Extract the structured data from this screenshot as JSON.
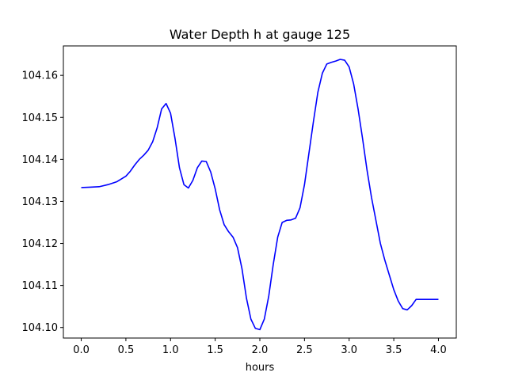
{
  "chart_data": {
    "type": "line",
    "title": "Water Depth h at gauge 125",
    "xlabel": "hours",
    "ylabel": "",
    "xlim": [
      -0.2,
      4.2
    ],
    "ylim": [
      104.0975,
      104.167
    ],
    "xticks": [
      0.0,
      0.5,
      1.0,
      1.5,
      2.0,
      2.5,
      3.0,
      3.5,
      4.0
    ],
    "xtick_labels": [
      "0.0",
      "0.5",
      "1.0",
      "1.5",
      "2.0",
      "2.5",
      "3.0",
      "3.5",
      "4.0"
    ],
    "yticks": [
      104.1,
      104.11,
      104.12,
      104.13,
      104.14,
      104.15,
      104.16
    ],
    "ytick_labels": [
      "104.10",
      "104.11",
      "104.12",
      "104.13",
      "104.14",
      "104.15",
      "104.16"
    ],
    "grid": false,
    "series": [
      {
        "color": "#0000ff",
        "x": [
          0.0,
          0.1,
          0.2,
          0.3,
          0.4,
          0.5,
          0.55,
          0.6,
          0.65,
          0.7,
          0.75,
          0.8,
          0.85,
          0.9,
          0.95,
          1.0,
          1.05,
          1.1,
          1.15,
          1.2,
          1.25,
          1.3,
          1.35,
          1.4,
          1.45,
          1.5,
          1.55,
          1.6,
          1.65,
          1.7,
          1.75,
          1.8,
          1.85,
          1.9,
          1.95,
          2.0,
          2.05,
          2.1,
          2.15,
          2.2,
          2.25,
          2.3,
          2.35,
          2.4,
          2.45,
          2.5,
          2.55,
          2.6,
          2.65,
          2.7,
          2.75,
          2.8,
          2.85,
          2.9,
          2.95,
          3.0,
          3.05,
          3.1,
          3.15,
          3.2,
          3.25,
          3.3,
          3.35,
          3.4,
          3.45,
          3.5,
          3.55,
          3.6,
          3.65,
          3.7,
          3.75,
          3.8,
          3.85,
          3.9,
          3.95,
          4.0
        ],
        "y": [
          104.1333,
          104.1334,
          104.1335,
          104.134,
          104.1347,
          104.136,
          104.1372,
          104.1387,
          104.14,
          104.141,
          104.1422,
          104.1442,
          104.1475,
          104.152,
          104.1533,
          104.151,
          104.145,
          104.138,
          104.134,
          104.1332,
          104.135,
          104.138,
          104.1396,
          104.1395,
          104.137,
          104.133,
          104.128,
          104.1245,
          104.1228,
          104.1215,
          104.119,
          104.114,
          104.107,
          104.102,
          104.0998,
          104.0995,
          104.102,
          104.1075,
          104.115,
          104.1215,
          104.125,
          104.1255,
          104.1256,
          104.126,
          104.1285,
          104.134,
          104.1415,
          104.149,
          104.156,
          104.1605,
          104.1627,
          104.1631,
          104.1634,
          104.1638,
          104.1636,
          104.162,
          104.158,
          104.152,
          104.145,
          104.1375,
          104.131,
          104.1255,
          104.12,
          104.116,
          104.1125,
          104.109,
          104.1063,
          104.1045,
          104.1042,
          104.1052,
          104.1067,
          104.1067,
          104.1067,
          104.1067,
          104.1067,
          104.1067
        ]
      }
    ]
  }
}
